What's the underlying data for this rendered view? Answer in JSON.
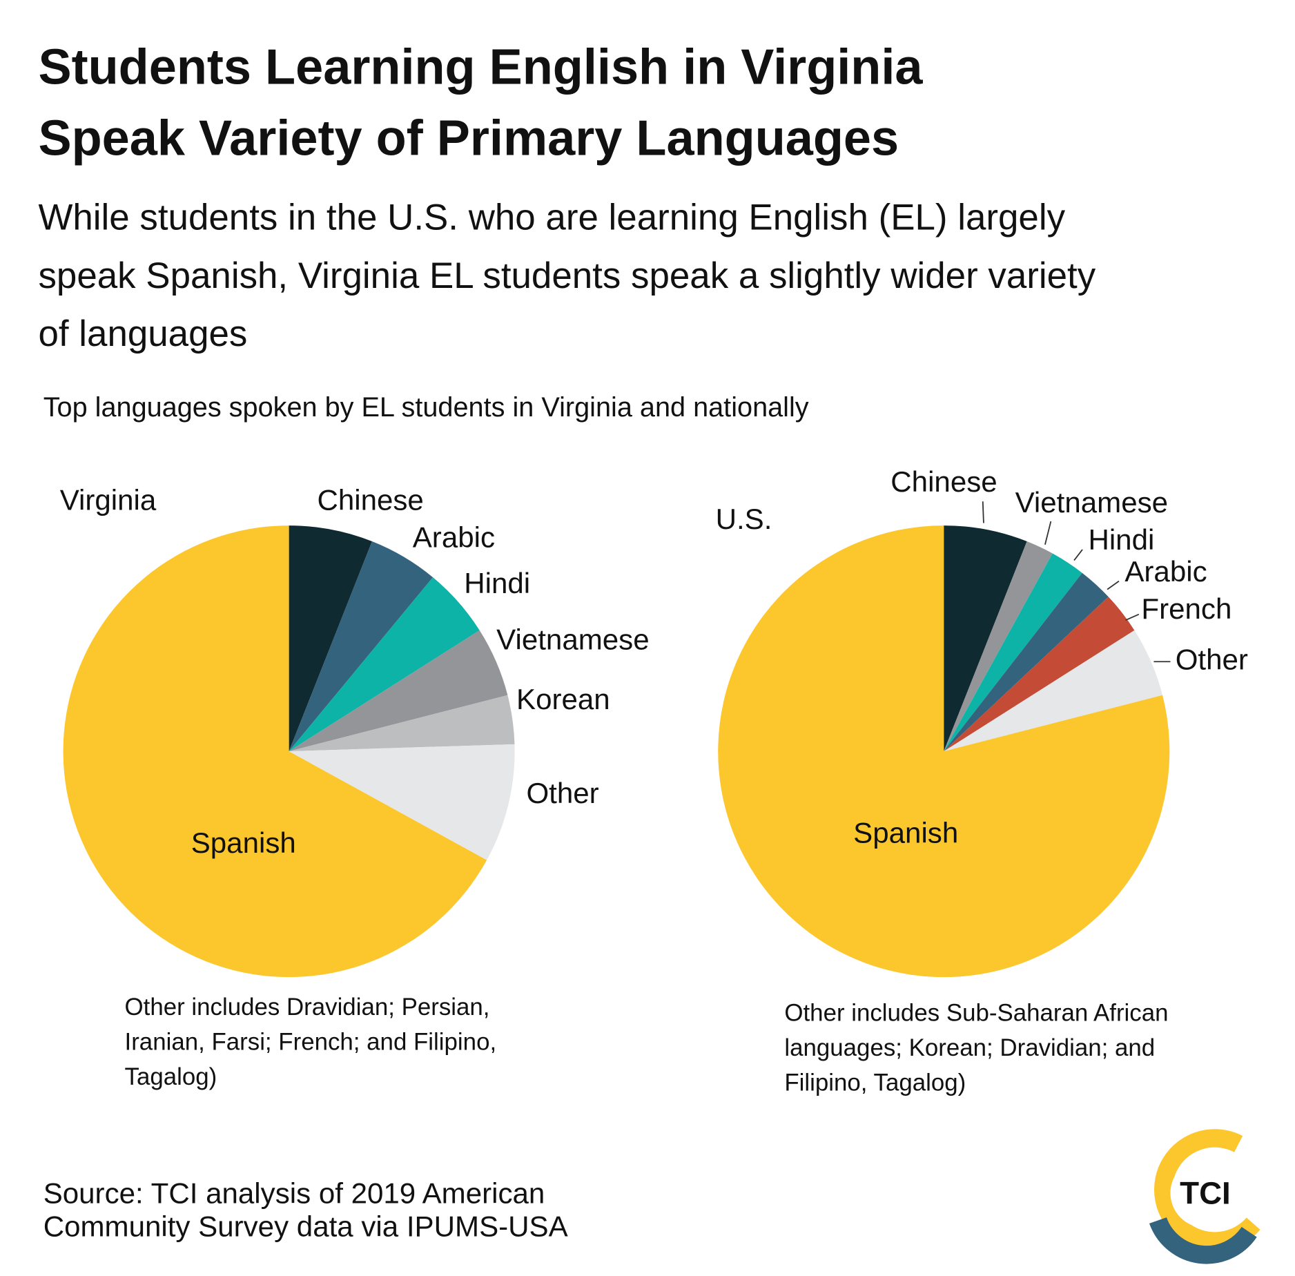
{
  "header": {
    "title": [
      "Students Learning English in Virginia",
      "Speak Variety of Primary Languages"
    ],
    "subtitle": [
      "While students in the U.S. who are learning English (EL) largely",
      "speak Spanish, Virginia EL students speak a slightly wider variety",
      "of languages"
    ],
    "caption": "Top languages spoken by EL students in Virginia and nationally"
  },
  "chart_data": [
    {
      "type": "pie",
      "title": "Virginia",
      "categories": [
        "Chinese",
        "Arabic",
        "Hindi",
        "Vietnamese",
        "Korean",
        "Other",
        "Spanish"
      ],
      "values": [
        6,
        5,
        5,
        5,
        3.5,
        8.5,
        67
      ],
      "colors": [
        "#0f2a30",
        "#33637d",
        "#0db3a7",
        "#939598",
        "#bcbec0",
        "#e6e7e8",
        "#fcc62d"
      ],
      "note": [
        "Other includes Dravidian; Persian,",
        "Iranian, Farsi; French; and Filipino,",
        "Tagalog)"
      ]
    },
    {
      "type": "pie",
      "title": "U.S.",
      "categories": [
        "Chinese",
        "Vietnamese",
        "Hindi",
        "Arabic",
        "French",
        "Other",
        "Spanish"
      ],
      "values": [
        6,
        2,
        2.5,
        2.5,
        3,
        5,
        79
      ],
      "colors": [
        "#0f2a30",
        "#939598",
        "#0db3a7",
        "#33637d",
        "#c44b35",
        "#e6e7e8",
        "#fcc62d"
      ],
      "note": [
        "Other includes Sub-Saharan African",
        "languages; Korean; Dravidian; and",
        "Filipino, Tagalog)"
      ]
    }
  ],
  "source": [
    "Source: TCI analysis of 2019 American",
    "Community Survey data via IPUMS-USA"
  ],
  "logo": {
    "text": "TCI"
  }
}
